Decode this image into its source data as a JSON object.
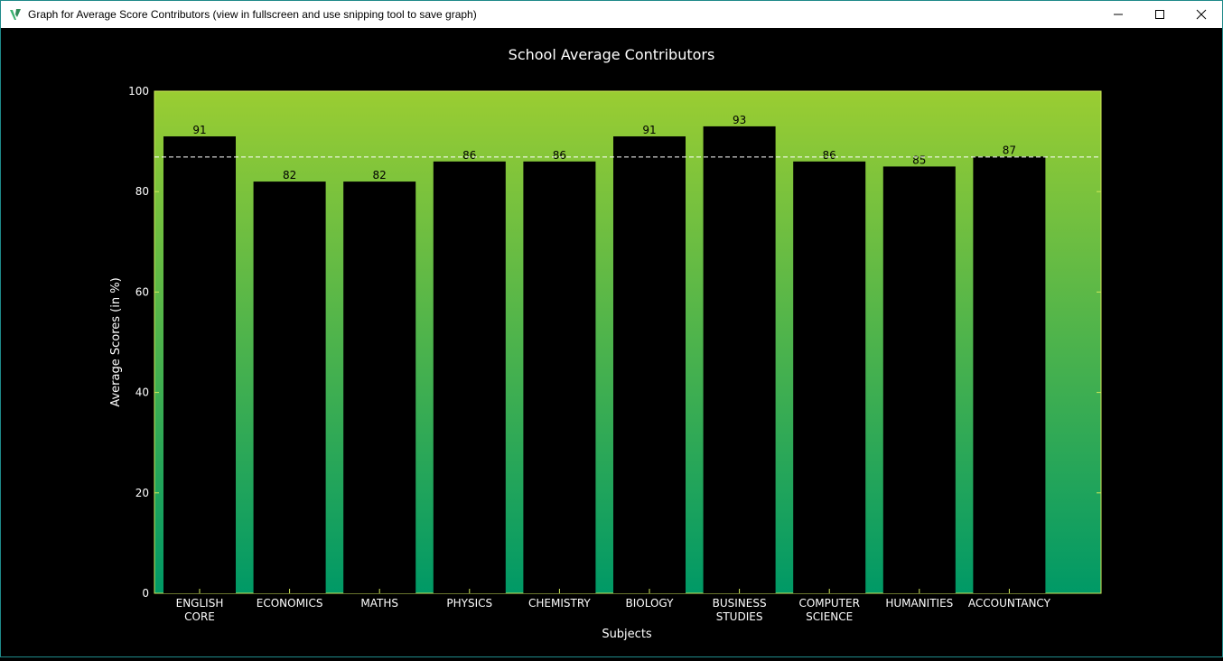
{
  "window": {
    "title": "Graph for Average Score Contributors (view in fullscreen and use snipping tool to save graph)",
    "controls": {
      "minimize_icon": "minimize-icon",
      "maximize_icon": "maximize-icon",
      "close_icon": "close-icon"
    }
  },
  "colors": {
    "gradient_top": "#9acd32",
    "gradient_bottom": "#009966",
    "bar_fill": "#000000",
    "text": "#ffffff",
    "axis": "#cfe85a",
    "average_line": "#ffffff"
  },
  "chart_data": {
    "type": "bar",
    "title": "School Average Contributors",
    "xlabel": "Subjects",
    "ylabel": "Average Scores (in %)",
    "ylim": [
      0,
      100
    ],
    "yticks": [
      0,
      20,
      40,
      60,
      80,
      100
    ],
    "categories": [
      [
        "ENGLISH",
        "CORE"
      ],
      [
        "ECONOMICS"
      ],
      [
        "MATHS"
      ],
      [
        "PHYSICS"
      ],
      [
        "CHEMISTRY"
      ],
      [
        "BIOLOGY"
      ],
      [
        "BUSINESS",
        "STUDIES"
      ],
      [
        "COMPUTER",
        "SCIENCE"
      ],
      [
        "HUMANITIES"
      ],
      [
        "ACCOUNTANCY"
      ]
    ],
    "values": [
      91,
      82,
      82,
      86,
      86,
      91,
      93,
      86,
      85,
      87
    ],
    "average_line": 86.9,
    "grid": false
  }
}
